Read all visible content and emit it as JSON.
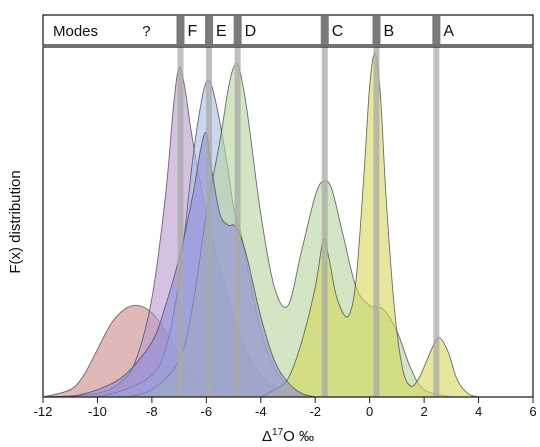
{
  "chart_data": {
    "type": "area",
    "xlabel": "Δ17O ‰",
    "xlabel_parts": {
      "delta": "Δ",
      "sup": "17",
      "rest": "O ‰"
    },
    "ylabel": "F(x) distribution",
    "xlim": [
      -12,
      6
    ],
    "x_ticks": [
      -12,
      -10,
      -8,
      -6,
      -4,
      -2,
      0,
      2,
      4,
      6
    ],
    "x_tick_labels": [
      "-12",
      "-10",
      "-8",
      "-6",
      "-4",
      "-2",
      "0",
      "2",
      "4",
      "6"
    ],
    "ylim": [
      0,
      1
    ],
    "y_ticks_shown": false,
    "grid": false,
    "modes_header": {
      "title": "Modes",
      "unknown_label": "?",
      "unknown_label_x": -8.2,
      "modes": [
        {
          "label": "F",
          "x": -6.95
        },
        {
          "label": "E",
          "x": -5.9
        },
        {
          "label": "D",
          "x": -4.85
        },
        {
          "label": "C",
          "x": -1.65
        },
        {
          "label": "B",
          "x": 0.25
        },
        {
          "label": "A",
          "x": 2.45
        }
      ]
    },
    "mode_lines_color": "#a9a9a9",
    "series": [
      {
        "color": "#c98b88",
        "x": [
          -12,
          -11,
          -10.5,
          -10,
          -9.5,
          -9,
          -8.5,
          -8,
          -7.5,
          -7,
          -6.5,
          -6,
          -5,
          -4,
          -3
        ],
        "y": [
          0.0,
          0.02,
          0.06,
          0.13,
          0.2,
          0.24,
          0.25,
          0.23,
          0.18,
          0.12,
          0.07,
          0.03,
          0.01,
          0.0,
          0.0
        ]
      },
      {
        "color": "#b99ad0",
        "x": [
          -12,
          -10,
          -9,
          -8.5,
          -8,
          -7.5,
          -7.2,
          -7,
          -6.8,
          -6.5,
          -6,
          -5.5,
          -5,
          -4.5,
          -4,
          -3.5,
          -3,
          -2
        ],
        "y": [
          0.0,
          0.01,
          0.05,
          0.12,
          0.27,
          0.55,
          0.8,
          0.9,
          0.85,
          0.7,
          0.5,
          0.35,
          0.22,
          0.12,
          0.06,
          0.03,
          0.01,
          0.0
        ]
      },
      {
        "color": "#a9bce6",
        "x": [
          -10,
          -9,
          -8,
          -7.5,
          -7,
          -6.5,
          -6.2,
          -6,
          -5.8,
          -5.5,
          -5.2,
          -5,
          -4.7,
          -4.4,
          -4,
          -3.5,
          -3,
          -2.5,
          -2
        ],
        "y": [
          0.0,
          0.02,
          0.06,
          0.13,
          0.32,
          0.65,
          0.8,
          0.86,
          0.85,
          0.75,
          0.62,
          0.52,
          0.44,
          0.32,
          0.18,
          0.08,
          0.03,
          0.01,
          0.0
        ]
      },
      {
        "color": "#b4d39c",
        "x": [
          -9,
          -8,
          -7,
          -6.5,
          -6,
          -5.5,
          -5.2,
          -5,
          -4.8,
          -4.5,
          -4,
          -3.5,
          -3,
          -2.5,
          -2,
          -1.7,
          -1.4,
          -1,
          -0.5,
          0,
          0.5,
          1,
          1.5,
          2,
          3
        ],
        "y": [
          0.0,
          0.02,
          0.1,
          0.25,
          0.5,
          0.7,
          0.84,
          0.9,
          0.9,
          0.78,
          0.5,
          0.3,
          0.25,
          0.4,
          0.55,
          0.59,
          0.57,
          0.45,
          0.3,
          0.25,
          0.24,
          0.18,
          0.08,
          0.02,
          0.0
        ]
      },
      {
        "color": "#d6d75a",
        "x": [
          -4,
          -3.5,
          -3,
          -2.5,
          -2,
          -1.7,
          -1.5,
          -1.2,
          -0.8,
          -0.5,
          -0.2,
          0,
          0.2,
          0.4,
          0.6,
          0.9,
          1.2,
          1.5,
          1.8,
          2.1,
          2.4,
          2.6,
          2.9,
          3.2,
          3.6,
          4
        ],
        "y": [
          0.0,
          0.02,
          0.05,
          0.15,
          0.3,
          0.43,
          0.38,
          0.27,
          0.22,
          0.32,
          0.62,
          0.85,
          0.94,
          0.82,
          0.55,
          0.25,
          0.08,
          0.03,
          0.05,
          0.1,
          0.15,
          0.16,
          0.12,
          0.05,
          0.01,
          0.0
        ]
      },
      {
        "color": "#8f8dd8",
        "x": [
          -11,
          -10,
          -9,
          -8,
          -7.5,
          -7,
          -6.5,
          -6.2,
          -6,
          -5.8,
          -5.5,
          -5.2,
          -5,
          -4.8,
          -4.5,
          -4,
          -3.5,
          -3,
          -2.5,
          -2
        ],
        "y": [
          0.0,
          0.02,
          0.06,
          0.15,
          0.25,
          0.38,
          0.55,
          0.68,
          0.72,
          0.62,
          0.5,
          0.47,
          0.47,
          0.45,
          0.38,
          0.22,
          0.1,
          0.04,
          0.01,
          0.0
        ]
      }
    ]
  }
}
